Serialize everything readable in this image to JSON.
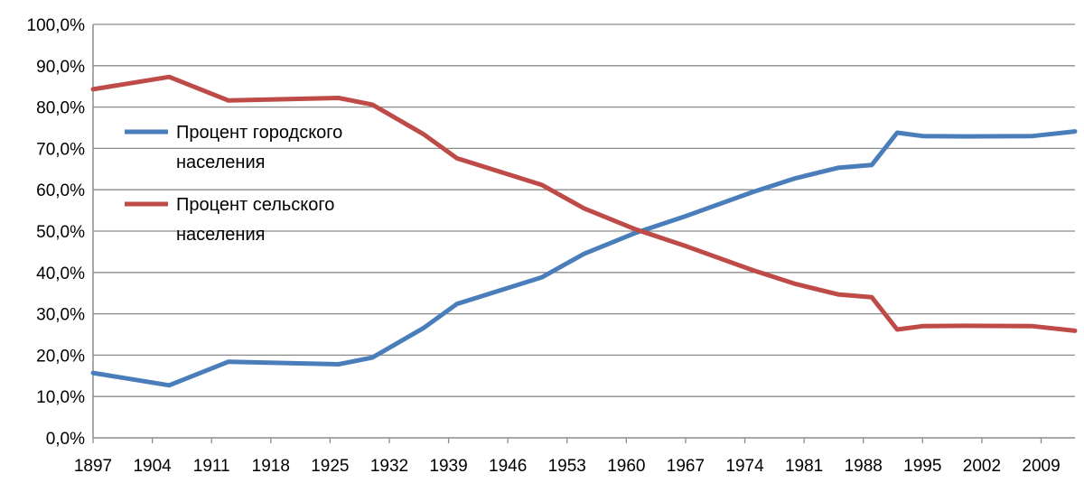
{
  "chart_data": {
    "type": "line",
    "x": [
      1897,
      1906,
      1913,
      1926,
      1930,
      1936,
      1940,
      1950,
      1955,
      1961,
      1967,
      1975,
      1977,
      1980,
      1985,
      1989,
      1992,
      1995,
      2000,
      2008,
      2013
    ],
    "series": [
      {
        "name": "Процент городского населения",
        "color": "#4a7ebb",
        "values": [
          15.7,
          12.7,
          18.4,
          17.8,
          19.4,
          26.5,
          32.4,
          38.8,
          44.5,
          49.5,
          53.6,
          59.5,
          60.8,
          62.8,
          65.3,
          66.0,
          73.8,
          73.0,
          72.9,
          73.0,
          74.1
        ]
      },
      {
        "name": "Процент сельского населения",
        "color": "#be4b48",
        "values": [
          84.3,
          87.3,
          81.6,
          82.2,
          80.6,
          73.5,
          67.6,
          61.2,
          55.5,
          50.5,
          46.4,
          40.5,
          39.2,
          37.2,
          34.7,
          34.0,
          26.2,
          27.0,
          27.1,
          27.0,
          25.9
        ]
      }
    ],
    "x_ticks": [
      "1897",
      "1904",
      "1911",
      "1918",
      "1925",
      "1932",
      "1939",
      "1946",
      "1953",
      "1960",
      "1967",
      "1974",
      "1981",
      "1988",
      "1995",
      "2002",
      "2009"
    ],
    "y_ticks": [
      "0,0%",
      "10,0%",
      "20,0%",
      "30,0%",
      "40,0%",
      "50,0%",
      "60,0%",
      "70,0%",
      "80,0%",
      "90,0%",
      "100,0%"
    ],
    "xlim": [
      1897,
      2013
    ],
    "ylim": [
      0,
      100
    ],
    "grid": true,
    "legend": {
      "placement": "left",
      "entries": [
        [
          "Процент городского",
          "населения"
        ],
        [
          "Процент сельского",
          "населения"
        ]
      ]
    },
    "title": "",
    "xlabel": "",
    "ylabel": ""
  }
}
